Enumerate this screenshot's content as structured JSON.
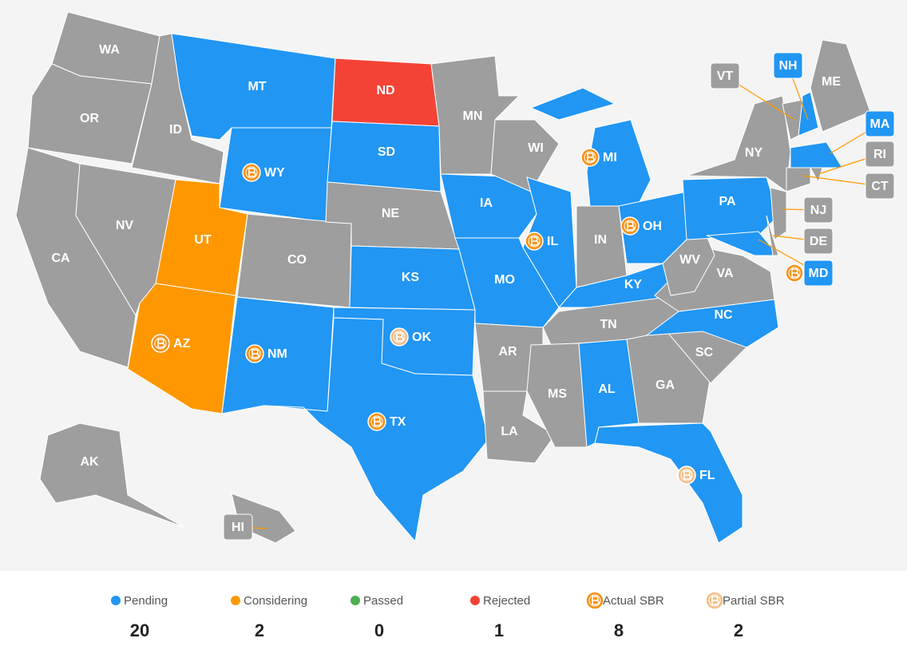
{
  "legend": [
    {
      "label": "Pending",
      "color": "#2196f3",
      "count": 20
    },
    {
      "label": "Considering",
      "color": "#ff9800",
      "count": 2
    },
    {
      "label": "Passed",
      "color": "#4caf50",
      "count": 0
    },
    {
      "label": "Rejected",
      "color": "#f44336",
      "count": 1
    },
    {
      "label": "Actual SBR",
      "color": "#f7931a",
      "count": 8
    },
    {
      "label": "Partial SBR",
      "color": "#f5c08a",
      "count": 2
    }
  ],
  "none_color": "#9e9e9e",
  "states": [
    {
      "abbr": "WA",
      "status": null,
      "sbr": null
    },
    {
      "abbr": "OR",
      "status": null,
      "sbr": null
    },
    {
      "abbr": "CA",
      "status": null,
      "sbr": null
    },
    {
      "abbr": "NV",
      "status": null,
      "sbr": null
    },
    {
      "abbr": "ID",
      "status": null,
      "sbr": null
    },
    {
      "abbr": "MT",
      "status": "Pending",
      "sbr": null
    },
    {
      "abbr": "WY",
      "status": "Pending",
      "sbr": "Actual SBR"
    },
    {
      "abbr": "UT",
      "status": "Considering",
      "sbr": null
    },
    {
      "abbr": "AZ",
      "status": "Considering",
      "sbr": "Actual SBR"
    },
    {
      "abbr": "CO",
      "status": null,
      "sbr": null
    },
    {
      "abbr": "NM",
      "status": "Pending",
      "sbr": "Actual SBR"
    },
    {
      "abbr": "ND",
      "status": "Rejected",
      "sbr": null
    },
    {
      "abbr": "SD",
      "status": "Pending",
      "sbr": null
    },
    {
      "abbr": "NE",
      "status": null,
      "sbr": null
    },
    {
      "abbr": "KS",
      "status": "Pending",
      "sbr": null
    },
    {
      "abbr": "OK",
      "status": "Pending",
      "sbr": "Partial SBR"
    },
    {
      "abbr": "TX",
      "status": "Pending",
      "sbr": "Actual SBR"
    },
    {
      "abbr": "MN",
      "status": null,
      "sbr": null
    },
    {
      "abbr": "IA",
      "status": "Pending",
      "sbr": null
    },
    {
      "abbr": "MO",
      "status": "Pending",
      "sbr": null
    },
    {
      "abbr": "WI",
      "status": null,
      "sbr": null
    },
    {
      "abbr": "IL",
      "status": "Pending",
      "sbr": "Actual SBR"
    },
    {
      "abbr": "MI",
      "status": "Pending",
      "sbr": "Actual SBR"
    },
    {
      "abbr": "IN",
      "status": null,
      "sbr": null
    },
    {
      "abbr": "OH",
      "status": "Pending",
      "sbr": "Actual SBR"
    },
    {
      "abbr": "KY",
      "status": "Pending",
      "sbr": null
    },
    {
      "abbr": "TN",
      "status": null,
      "sbr": null
    },
    {
      "abbr": "AR",
      "status": null,
      "sbr": null
    },
    {
      "abbr": "LA",
      "status": null,
      "sbr": null
    },
    {
      "abbr": "MS",
      "status": null,
      "sbr": null
    },
    {
      "abbr": "AL",
      "status": "Pending",
      "sbr": null
    },
    {
      "abbr": "GA",
      "status": null,
      "sbr": null
    },
    {
      "abbr": "FL",
      "status": "Pending",
      "sbr": "Partial SBR"
    },
    {
      "abbr": "SC",
      "status": null,
      "sbr": null
    },
    {
      "abbr": "NC",
      "status": "Pending",
      "sbr": null
    },
    {
      "abbr": "VA",
      "status": null,
      "sbr": null
    },
    {
      "abbr": "WV",
      "status": null,
      "sbr": null
    },
    {
      "abbr": "PA",
      "status": "Pending",
      "sbr": null
    },
    {
      "abbr": "NY",
      "status": null,
      "sbr": null
    },
    {
      "abbr": "MD",
      "status": "Pending",
      "sbr": "Actual SBR"
    },
    {
      "abbr": "DE",
      "status": null,
      "sbr": null
    },
    {
      "abbr": "NJ",
      "status": null,
      "sbr": null
    },
    {
      "abbr": "NH",
      "status": "Pending",
      "sbr": null
    },
    {
      "abbr": "VT",
      "status": null,
      "sbr": null
    },
    {
      "abbr": "ME",
      "status": null,
      "sbr": null
    },
    {
      "abbr": "MA",
      "status": "Pending",
      "sbr": null
    },
    {
      "abbr": "CT",
      "status": null,
      "sbr": null
    },
    {
      "abbr": "RI",
      "status": null,
      "sbr": null
    },
    {
      "abbr": "AK",
      "status": null,
      "sbr": null
    },
    {
      "abbr": "HI",
      "status": null,
      "sbr": null
    }
  ]
}
